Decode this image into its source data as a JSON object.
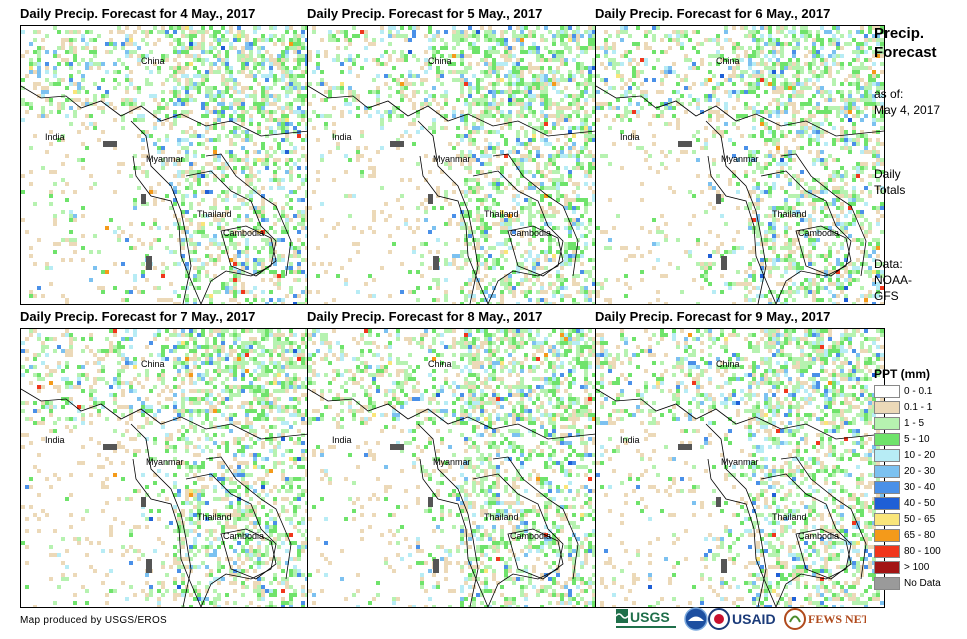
{
  "panels": [
    {
      "title": "Daily Precip. Forecast for 4 May., 2017",
      "day_index": 0
    },
    {
      "title": "Daily Precip. Forecast for 5 May., 2017",
      "day_index": 1
    },
    {
      "title": "Daily Precip. Forecast for 6 May., 2017",
      "day_index": 2
    },
    {
      "title": "Daily Precip. Forecast for 7 May., 2017",
      "day_index": 3
    },
    {
      "title": "Daily Precip. Forecast for 8 May., 2017",
      "day_index": 4
    },
    {
      "title": "Daily Precip. Forecast for 9 May., 2017",
      "day_index": 5
    }
  ],
  "place_labels": {
    "china": "China",
    "india": "India",
    "myanmar": "Myanmar",
    "thailand": "Thailand",
    "cambodia": "Cambodia"
  },
  "sidebar": {
    "title_line1": "Precip.",
    "title_line2": "Forecast",
    "asof_line1": "as of:",
    "asof_line2": "May 4, 2017",
    "totals_line1": "Daily",
    "totals_line2": "Totals",
    "data_line1": "Data:",
    "data_line2": "NOAA-",
    "data_line3": "GFS"
  },
  "legend": {
    "title": "PPT (mm)",
    "items": [
      {
        "label": "0 - 0.1",
        "color": "#ffffff"
      },
      {
        "label": "0.1 - 1",
        "color": "#ecd9b8"
      },
      {
        "label": "1 - 5",
        "color": "#b6f2b0"
      },
      {
        "label": "5 - 10",
        "color": "#6fe36b"
      },
      {
        "label": "10 - 20",
        "color": "#b7ecf5"
      },
      {
        "label": "20 - 30",
        "color": "#7cc1f0"
      },
      {
        "label": "30 - 40",
        "color": "#4a90e8"
      },
      {
        "label": "40 - 50",
        "color": "#1f5fd6"
      },
      {
        "label": "50 - 65",
        "color": "#f9e57a"
      },
      {
        "label": "65 - 80",
        "color": "#f49a1a"
      },
      {
        "label": "80 - 100",
        "color": "#f0361c"
      },
      {
        "label": "> 100",
        "color": "#a31414"
      },
      {
        "label": "No Data",
        "color": "#9a9a9a"
      }
    ]
  },
  "credit": "Map produced by USGS/EROS",
  "logos": {
    "usgs": "USGS",
    "usaid": "USAID",
    "fewsnet": "FEWS NET"
  }
}
